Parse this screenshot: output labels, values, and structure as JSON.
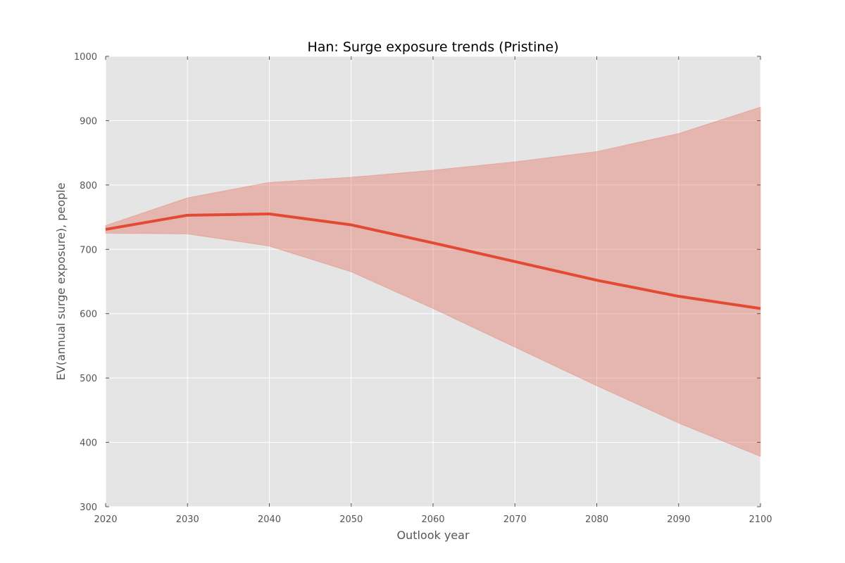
{
  "chart_data": {
    "type": "line",
    "title": "Han: Surge exposure trends (Pristine)",
    "xlabel": "Outlook year",
    "ylabel": "EV(annual surge exposure), people",
    "xlim": [
      2020,
      2100
    ],
    "ylim": [
      300,
      1000
    ],
    "x_ticks": [
      "2020",
      "2030",
      "2040",
      "2050",
      "2060",
      "2070",
      "2080",
      "2090",
      "2100"
    ],
    "y_ticks": [
      "300",
      "400",
      "500",
      "600",
      "700",
      "800",
      "900",
      "1000"
    ],
    "grid": true,
    "x": [
      2020,
      2030,
      2040,
      2050,
      2060,
      2070,
      2080,
      2090,
      2100
    ],
    "series": [
      {
        "values": [
          731,
          753,
          755,
          738,
          710,
          681,
          652,
          627,
          608
        ],
        "upper": [
          737,
          780,
          804,
          812,
          823,
          836,
          852,
          880,
          921
        ],
        "lower": [
          725,
          724,
          705,
          665,
          608,
          548,
          488,
          430,
          378
        ]
      }
    ],
    "colors": {
      "line": "#e24a33",
      "band": "#e24a33",
      "plot_bg": "#e5e5e5",
      "grid": "#ffffff"
    }
  }
}
